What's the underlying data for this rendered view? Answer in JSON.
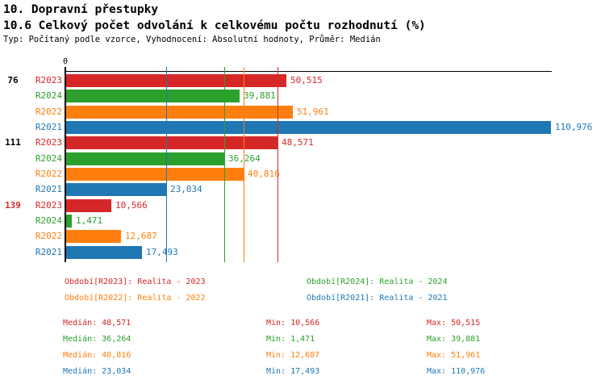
{
  "header": {
    "title": "10. Dopravní přestupky",
    "subtitle": "10.6 Celkový počet odvolání k celkovému počtu rozhodnutí (%)",
    "meta": "Typ: Počítaný podle vzorce, Vyhodnocení: Absolutní hodnoty, Průměr: Medián"
  },
  "chart_data": {
    "type": "bar",
    "orientation": "horizontal",
    "axis_zero_label": "0",
    "xlim": [
      0,
      110976
    ],
    "grid": false,
    "series_colors": {
      "R2023": "#d62728",
      "R2024": "#2ca02c",
      "R2022": "#ff7f0e",
      "R2021": "#1f77b4"
    },
    "groups": [
      {
        "label": "76",
        "label_color": "#000000",
        "bars": [
          {
            "series": "R2023",
            "value": 50515,
            "display": "50,515"
          },
          {
            "series": "R2024",
            "value": 39881,
            "display": "39,881"
          },
          {
            "series": "R2022",
            "value": 51961,
            "display": "51,961"
          },
          {
            "series": "R2021",
            "value": 110976,
            "display": "110,976"
          }
        ]
      },
      {
        "label": "111",
        "label_color": "#000000",
        "bars": [
          {
            "series": "R2023",
            "value": 48571,
            "display": "48,571"
          },
          {
            "series": "R2024",
            "value": 36264,
            "display": "36,264"
          },
          {
            "series": "R2022",
            "value": 40816,
            "display": "40,816"
          },
          {
            "series": "R2021",
            "value": 23034,
            "display": "23,034"
          }
        ]
      },
      {
        "label": "139",
        "label_color": "#d62728",
        "bars": [
          {
            "series": "R2023",
            "value": 10566,
            "display": "10,566"
          },
          {
            "series": "R2024",
            "value": 1471,
            "display": "1,471"
          },
          {
            "series": "R2022",
            "value": 12687,
            "display": "12,687"
          },
          {
            "series": "R2021",
            "value": 17493,
            "display": "17,493"
          }
        ]
      }
    ],
    "median_lines": [
      {
        "series": "R2023",
        "value": 48571
      },
      {
        "series": "R2024",
        "value": 36264
      },
      {
        "series": "R2022",
        "value": 40816
      },
      {
        "series": "R2021",
        "value": 23034
      }
    ]
  },
  "legend": {
    "items": [
      {
        "series": "R2023",
        "label": "Období[R2023]: Realita - 2023"
      },
      {
        "series": "R2024",
        "label": "Období[R2024]: Realita - 2024"
      },
      {
        "series": "R2022",
        "label": "Období[R2022]: Realita - 2022"
      },
      {
        "series": "R2021",
        "label": "Období[R2021]: Realita - 2021"
      }
    ]
  },
  "stats": {
    "rows": [
      {
        "series": "R2023",
        "median": "Medián: 48,571",
        "min": "Min: 10,566",
        "max": "Max: 50,515"
      },
      {
        "series": "R2024",
        "median": "Medián: 36,264",
        "min": "Min: 1,471",
        "max": "Max: 39,881"
      },
      {
        "series": "R2022",
        "median": "Medián: 40,816",
        "min": "Min: 12,687",
        "max": "Max: 51,961"
      },
      {
        "series": "R2021",
        "median": "Medián: 23,034",
        "min": "Min: 17,493",
        "max": "Max: 110,976"
      }
    ]
  }
}
